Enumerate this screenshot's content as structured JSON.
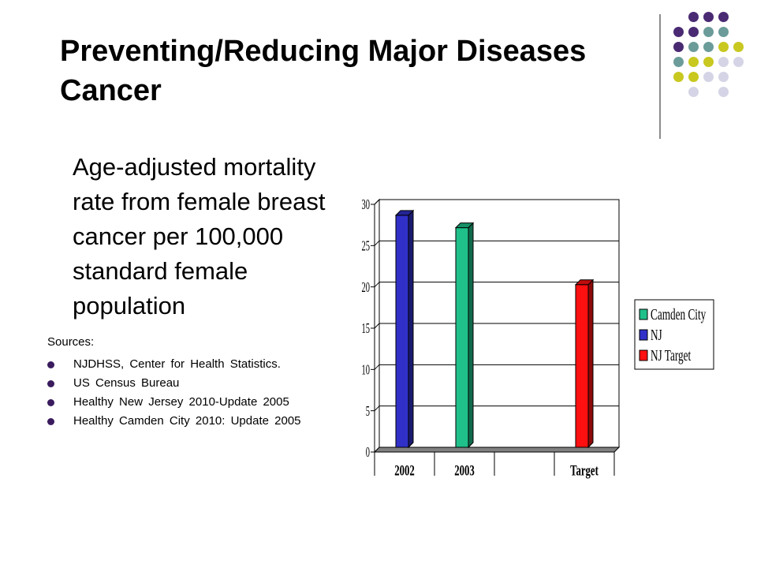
{
  "slide": {
    "title_lines": [
      "Preventing/Reducing Major Diseases",
      "Cancer"
    ],
    "body_lines": [
      "Age-adjusted mortality",
      "rate from female breast",
      "cancer per 100,000",
      "standard female",
      "population"
    ],
    "sources_heading": "Sources:",
    "sources": [
      "NJDHSS, Center for Health Statistics.",
      "US Census Bureau",
      "Healthy New Jersey 2010-Update 2005",
      "Healthy Camden City 2010: Update 2005"
    ],
    "dot_colors": {
      "purple": "#4a2a73",
      "teal": "#6b9c9a",
      "yellow": "#c8c820",
      "lavender": "#d4d4e6"
    }
  },
  "chart_data": {
    "type": "bar",
    "categories": [
      "2002",
      "2003",
      "",
      "Target"
    ],
    "series": [
      {
        "name": "Camden City",
        "color": "#1fc08a",
        "values": [
          null,
          26.6,
          null,
          null
        ]
      },
      {
        "name": "NJ",
        "color": "#3030c8",
        "values": [
          28.1,
          null,
          null,
          null
        ]
      },
      {
        "name": "NJ Target",
        "color": "#ff1010",
        "values": [
          null,
          null,
          null,
          19.7
        ]
      }
    ],
    "yticks": [
      "0",
      "5",
      "10",
      "15",
      "20",
      "25",
      "30"
    ],
    "ylim": [
      0,
      30
    ],
    "grid": true,
    "legend_position": "right"
  }
}
